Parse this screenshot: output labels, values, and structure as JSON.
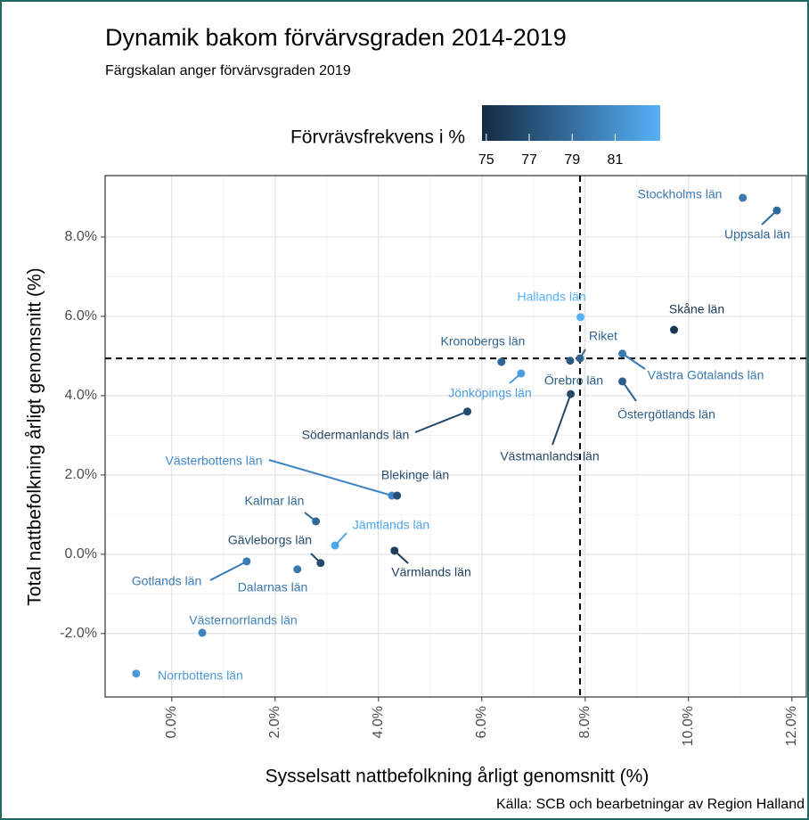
{
  "chart_data": {
    "type": "scatter",
    "title": "Dynamik bakom förvärvsgraden 2014-2019",
    "subtitle": "Färgskalan anger förvärvsgraden 2019",
    "x_label": "Sysselsatt nattbefolkning årligt genomsnitt (%)",
    "y_label": "Total nattbefolkning årligt genomsnitt (%)",
    "source": "Källa: SCB och bearbetningar av Region Halland",
    "colorbar": {
      "title": "Förvrävsfrekvens i %",
      "lim": [
        74.8,
        83.1
      ],
      "ticks": [
        75,
        77,
        79,
        81
      ],
      "colors": [
        "#132B43",
        "#56B1F7"
      ]
    },
    "xlim": [
      -1.29,
      12.28
    ],
    "ylim": [
      -3.6,
      9.55
    ],
    "xticks": [
      {
        "value": 0,
        "label": "0.0%"
      },
      {
        "value": 2,
        "label": "2.0%"
      },
      {
        "value": 4,
        "label": "4.0%"
      },
      {
        "value": 6,
        "label": "6.0%"
      },
      {
        "value": 8,
        "label": "8.0%"
      },
      {
        "value": 10,
        "label": "10.0%"
      },
      {
        "value": 12,
        "label": "12.0%"
      }
    ],
    "yticks": [
      {
        "value": -2,
        "label": "-2.0%"
      },
      {
        "value": 0,
        "label": "0.0%"
      },
      {
        "value": 2,
        "label": "2.0%"
      },
      {
        "value": 4,
        "label": "4.0%"
      },
      {
        "value": 6,
        "label": "6.0%"
      },
      {
        "value": 8,
        "label": "8.0%"
      }
    ],
    "grid": true,
    "reference_lines": {
      "x": 7.9,
      "y": 4.94
    },
    "labels": [
      "Stockholms län",
      "Uppsala län",
      "Hallands län",
      "Skåne län",
      "Kronobergs län",
      "Riket",
      "Västra Götalands län",
      "Örebro län",
      "Jönköpings län",
      "Östergötlands län",
      "Västmanlands län",
      "Södermanlands län",
      "Västerbottens län",
      "Blekinge län",
      "Kalmar län",
      "Jämtlands län",
      "Gävleborgs län",
      "Dalarnas län",
      "Värmlands län",
      "Gotlands län",
      "Västernorrlands län",
      "Norrbottens län"
    ],
    "x": [
      11.05,
      11.71,
      7.91,
      9.72,
      6.38,
      7.9,
      8.72,
      7.71,
      6.76,
      8.72,
      7.72,
      5.72,
      4.26,
      4.36,
      2.79,
      3.16,
      2.88,
      2.43,
      4.31,
      1.45,
      0.59,
      -0.69
    ],
    "values": [
      8.99,
      8.67,
      5.98,
      5.66,
      4.85,
      4.94,
      5.06,
      4.88,
      4.56,
      4.36,
      4.04,
      3.6,
      1.48,
      1.48,
      0.83,
      0.22,
      -0.22,
      -0.38,
      0.09,
      -0.18,
      -1.98,
      -3.01
    ],
    "colors": [
      "#3a78b0",
      "#2f6a9c",
      "#56b1f7",
      "#1a3550",
      "#2f6592",
      "#2e6390",
      "#3a78b0",
      "#2b5c86",
      "#4d9de0",
      "#2d5f8a",
      "#23486b",
      "#244a6e",
      "#4186c4",
      "#274f75",
      "#2f6796",
      "#4fa6e8",
      "#254c70",
      "#3a78ad",
      "#1e3d5b",
      "#3b7ab3",
      "#3f82be",
      "#4b99da"
    ]
  }
}
